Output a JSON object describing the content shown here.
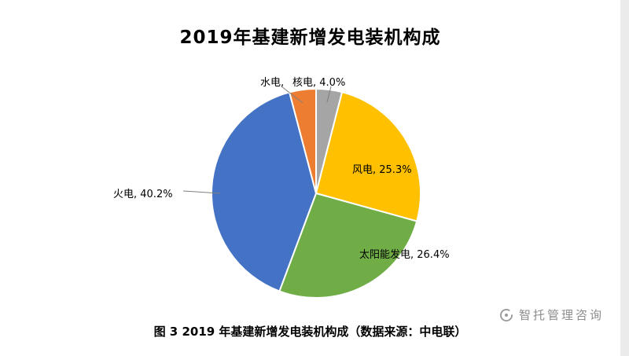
{
  "title": "2019年基建新增发电装机构成",
  "caption": "图 3 2019 年基建新增发电装机构成（数据来源：中电联）",
  "watermark": {
    "text": "智托管理咨询",
    "icon": "swirl-logo-icon"
  },
  "chart_data": {
    "type": "pie",
    "title": "2019年基建新增发电装机构成",
    "direction": "clockwise",
    "start_angle_deg": 0,
    "legend_position": "none",
    "slices": [
      {
        "id": "nuclear",
        "name": "核电",
        "value": 4.0,
        "color": "#A5A5A5",
        "label": "核电, 4.0%"
      },
      {
        "id": "wind",
        "name": "风电",
        "value": 25.3,
        "color": "#FFC000",
        "label": "风电, 25.3%"
      },
      {
        "id": "solar",
        "name": "太阳能发电",
        "value": 26.4,
        "color": "#70AD47",
        "label": "太阳能发电, 26.4%"
      },
      {
        "id": "thermal",
        "name": "火电",
        "value": 40.2,
        "color": "#4472C4",
        "label": "火电, 40.2%"
      },
      {
        "id": "hydro",
        "name": "水电",
        "value": 4.1,
        "color": "#ED7D31",
        "label": "水电,"
      }
    ]
  }
}
